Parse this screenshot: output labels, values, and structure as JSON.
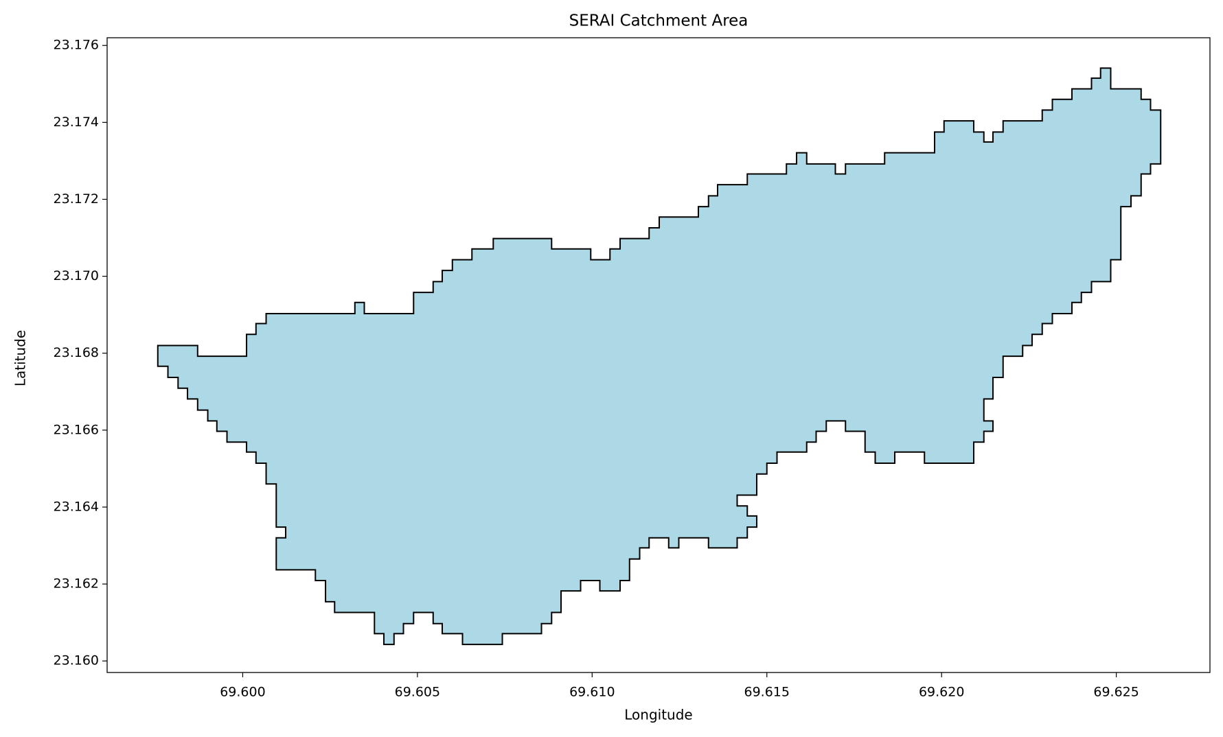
{
  "chart_data": {
    "type": "polygon",
    "title": "SERAI Catchment Area",
    "xlabel": "Longitude",
    "ylabel": "Latitude",
    "color": "#add8e6",
    "edgecolor": "#000000",
    "xlim": [
      69.59612,
      69.62768
    ],
    "ylim": [
      23.1597,
      23.1762
    ],
    "xticks": [
      {
        "value": 69.6,
        "label": "69.600"
      },
      69.605,
      {
        "value": 69.61,
        "label": "69.610"
      },
      69.615,
      {
        "value": 69.62,
        "label": "69.620"
      },
      69.625
    ],
    "yticks": [
      {
        "value": 23.16,
        "label": "23.160"
      },
      23.162,
      23.164,
      23.166,
      23.168,
      {
        "value": 23.17,
        "label": "23.170"
      },
      23.172,
      23.174,
      23.176
    ],
    "x": [
      69.59757,
      69.59871,
      69.59871,
      69.60011,
      69.60011,
      69.60038,
      69.60038,
      69.60067,
      69.60067,
      69.60321,
      69.60321,
      69.60348,
      69.60348,
      69.60489,
      69.60489,
      69.60545,
      69.60545,
      69.60571,
      69.60571,
      69.606,
      69.606,
      69.60656,
      69.60656,
      69.60717,
      69.60717,
      69.60884,
      69.60884,
      69.60996,
      69.60996,
      69.61051,
      69.61051,
      69.6108,
      69.6108,
      69.61163,
      69.61163,
      69.61192,
      69.61192,
      69.61304,
      69.61304,
      69.61333,
      69.61333,
      69.61359,
      69.61359,
      69.61444,
      69.61444,
      69.61556,
      69.61556,
      69.61585,
      69.61585,
      69.61614,
      69.61614,
      69.61696,
      69.61696,
      69.61725,
      69.61725,
      69.61837,
      69.61837,
      69.6198,
      69.6198,
      69.62007,
      69.62007,
      69.62092,
      69.62092,
      69.62121,
      69.62121,
      69.62147,
      69.62147,
      69.62176,
      69.62176,
      69.62288,
      69.62288,
      69.62317,
      69.62317,
      69.62373,
      69.62373,
      69.62429,
      69.62429,
      69.62455,
      69.62455,
      69.62484,
      69.62484,
      69.62571,
      69.62571,
      69.62598,
      69.62598,
      69.62627,
      69.62627,
      69.62598,
      69.62598,
      69.62571,
      69.62571,
      69.62542,
      69.62542,
      69.62513,
      69.62513,
      69.62484,
      69.62484,
      69.62429,
      69.62429,
      69.624,
      69.624,
      69.62373,
      69.62373,
      69.62317,
      69.62317,
      69.62288,
      69.62288,
      69.62259,
      69.62259,
      69.62232,
      69.62232,
      69.62176,
      69.62176,
      69.62147,
      69.62147,
      69.62121,
      69.62121,
      69.62147,
      69.62147,
      69.62121,
      69.62121,
      69.62092,
      69.62092,
      69.61951,
      69.61951,
      69.61866,
      69.61866,
      69.6181,
      69.6181,
      69.61781,
      69.61781,
      69.61725,
      69.61725,
      69.6167,
      69.6167,
      69.61641,
      69.61641,
      69.61614,
      69.61614,
      69.61529,
      69.61529,
      69.615,
      69.615,
      69.61471,
      69.61471,
      69.61415,
      69.61415,
      69.61444,
      69.61444,
      69.61471,
      69.61471,
      69.61444,
      69.61444,
      69.61415,
      69.61415,
      69.61333,
      69.61333,
      69.61248,
      69.61248,
      69.61219,
      69.61219,
      69.61163,
      69.61163,
      69.61136,
      69.61136,
      69.61107,
      69.61107,
      69.6108,
      69.6108,
      69.61022,
      69.61022,
      69.60967,
      69.60967,
      69.60911,
      69.60911,
      69.60884,
      69.60884,
      69.60855,
      69.60855,
      69.60743,
      69.60743,
      69.60629,
      69.60629,
      69.60571,
      69.60571,
      69.60545,
      69.60545,
      69.60489,
      69.60489,
      69.6046,
      69.6046,
      69.60433,
      69.60433,
      69.60404,
      69.60404,
      69.60377,
      69.60377,
      69.60263,
      69.60263,
      69.60237,
      69.60237,
      69.60208,
      69.60208,
      69.60096,
      69.60096,
      69.60123,
      69.60123,
      69.60096,
      69.60096,
      69.60067,
      69.60067,
      69.60038,
      69.60038,
      69.60011,
      69.60011,
      69.59955,
      69.59955,
      69.59926,
      69.59926,
      69.599,
      69.599,
      69.59871,
      69.59871,
      69.59842,
      69.59842,
      69.59815,
      69.59815,
      69.59786,
      69.59786,
      69.59757
    ],
    "y": [
      23.1682,
      23.1682,
      23.16792,
      23.16792,
      23.16849,
      23.16849,
      23.16877,
      23.16877,
      23.16903,
      23.16903,
      23.16932,
      23.16932,
      23.16903,
      23.16903,
      23.16958,
      23.16958,
      23.16986,
      23.16986,
      23.17015,
      23.17015,
      23.17043,
      23.17043,
      23.17071,
      23.17071,
      23.17098,
      23.17098,
      23.17071,
      23.17071,
      23.17043,
      23.17043,
      23.17071,
      23.17071,
      23.17098,
      23.17098,
      23.17126,
      23.17126,
      23.17154,
      23.17154,
      23.17181,
      23.17181,
      23.17209,
      23.17209,
      23.17238,
      23.17238,
      23.17266,
      23.17266,
      23.17292,
      23.17292,
      23.17321,
      23.17321,
      23.17292,
      23.17292,
      23.17266,
      23.17266,
      23.17292,
      23.17292,
      23.17321,
      23.17321,
      23.17375,
      23.17375,
      23.17404,
      23.17404,
      23.17375,
      23.17375,
      23.17349,
      23.17349,
      23.17375,
      23.17375,
      23.17404,
      23.17404,
      23.17432,
      23.17432,
      23.1746,
      23.1746,
      23.17487,
      23.17487,
      23.17515,
      23.17515,
      23.17541,
      23.17541,
      23.17487,
      23.17487,
      23.1746,
      23.1746,
      23.17432,
      23.17432,
      23.17292,
      23.17292,
      23.17266,
      23.17266,
      23.17209,
      23.17209,
      23.17181,
      23.17181,
      23.17043,
      23.17043,
      23.16986,
      23.16986,
      23.16958,
      23.16958,
      23.16932,
      23.16932,
      23.16903,
      23.16903,
      23.16877,
      23.16877,
      23.16849,
      23.16849,
      23.1682,
      23.1682,
      23.16792,
      23.16792,
      23.16737,
      23.16737,
      23.16681,
      23.16681,
      23.16624,
      23.16624,
      23.16597,
      23.16597,
      23.16569,
      23.16569,
      23.16514,
      23.16514,
      23.16543,
      23.16543,
      23.16514,
      23.16514,
      23.16543,
      23.16543,
      23.16597,
      23.16597,
      23.16624,
      23.16624,
      23.16597,
      23.16597,
      23.16569,
      23.16569,
      23.16543,
      23.16543,
      23.16514,
      23.16514,
      23.16486,
      23.16486,
      23.16431,
      23.16431,
      23.16403,
      23.16403,
      23.16377,
      23.16377,
      23.16348,
      23.16348,
      23.1632,
      23.1632,
      23.16294,
      23.16294,
      23.1632,
      23.1632,
      23.16294,
      23.16294,
      23.1632,
      23.1632,
      23.16294,
      23.16294,
      23.16265,
      23.16265,
      23.16209,
      23.16209,
      23.16182,
      23.16182,
      23.16209,
      23.16209,
      23.16182,
      23.16182,
      23.16126,
      23.16126,
      23.16097,
      23.16097,
      23.16071,
      23.16071,
      23.16043,
      23.16043,
      23.16071,
      23.16071,
      23.16097,
      23.16097,
      23.16126,
      23.16126,
      23.16097,
      23.16097,
      23.16071,
      23.16071,
      23.16043,
      23.16043,
      23.16071,
      23.16071,
      23.16126,
      23.16126,
      23.16154,
      23.16154,
      23.16209,
      23.16209,
      23.16237,
      23.16237,
      23.1632,
      23.1632,
      23.16348,
      23.16348,
      23.1646,
      23.1646,
      23.16514,
      23.16514,
      23.16543,
      23.16543,
      23.16569,
      23.16569,
      23.16597,
      23.16597,
      23.16624,
      23.16624,
      23.16652,
      23.16652,
      23.16681,
      23.16681,
      23.16709,
      23.16709,
      23.16737,
      23.16737,
      23.16766,
      23.16766
    ]
  }
}
